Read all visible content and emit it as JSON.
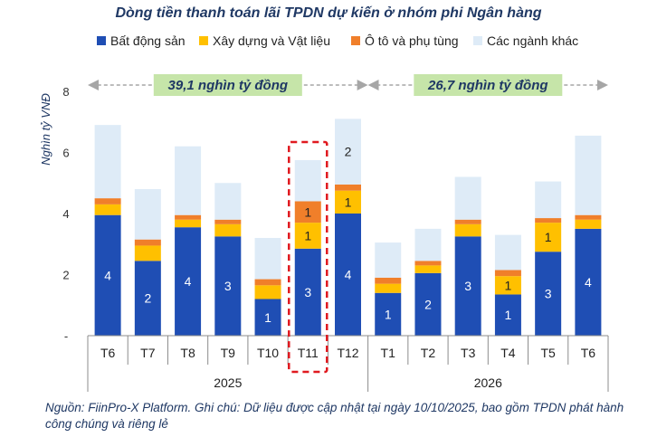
{
  "chart_data": {
    "type": "bar",
    "stacked": true,
    "title": "Dòng tiền thanh toán lãi TPDN dự kiến ở nhóm phi Ngân hàng",
    "ylabel": "Nghìn tỷ VNĐ",
    "ylim": [
      0,
      8
    ],
    "yticks": [
      "-",
      "2",
      "4",
      "6",
      "8"
    ],
    "grid": false,
    "legend_position": "top",
    "categories": [
      "T6",
      "T7",
      "T8",
      "T9",
      "T10",
      "T11",
      "T12",
      "T1",
      "T2",
      "T3",
      "T4",
      "T5",
      "T6"
    ],
    "groups": [
      {
        "label": "2025",
        "start": 0,
        "end": 6
      },
      {
        "label": "2026",
        "start": 7,
        "end": 12
      }
    ],
    "highlight_index": 5,
    "series": [
      {
        "name": "Bất động sản",
        "color": "#1f4eb4",
        "values": [
          3.95,
          2.45,
          3.55,
          3.25,
          1.2,
          2.85,
          4.0,
          1.4,
          2.05,
          3.25,
          1.35,
          2.75,
          3.5
        ],
        "labels": [
          "4",
          "2",
          "4",
          "3",
          "1",
          "3",
          "4",
          "1",
          "2",
          "3",
          "1",
          "3",
          "4"
        ]
      },
      {
        "name": "Xây dựng và Vật liệu",
        "color": "#ffc000",
        "values": [
          0.35,
          0.5,
          0.25,
          0.4,
          0.45,
          0.85,
          0.75,
          0.3,
          0.25,
          0.4,
          0.6,
          0.95,
          0.3
        ],
        "labels": [
          "",
          "",
          "",
          "",
          "",
          "1",
          "1",
          "",
          "",
          "",
          "1",
          "1",
          ""
        ]
      },
      {
        "name": "Ô tô và phụ tùng",
        "color": "#f07f2a",
        "values": [
          0.2,
          0.2,
          0.15,
          0.15,
          0.2,
          0.7,
          0.2,
          0.2,
          0.15,
          0.15,
          0.2,
          0.15,
          0.15
        ],
        "labels": [
          "",
          "",
          "",
          "",
          "",
          "1",
          "",
          "",
          "",
          "",
          "",
          "",
          ""
        ]
      },
      {
        "name": "Các ngành khác",
        "color": "#deebf7",
        "values": [
          2.4,
          1.65,
          2.25,
          1.2,
          1.35,
          1.35,
          2.15,
          1.15,
          1.05,
          1.4,
          1.15,
          1.2,
          2.6
        ],
        "labels": [
          "",
          "",
          "",
          "",
          "",
          "",
          "2",
          "",
          "",
          "",
          "",
          "",
          ""
        ]
      }
    ],
    "annotations": [
      {
        "text": "39,1 nghìn tỷ đồng",
        "start": 0,
        "end": 6
      },
      {
        "text": "26,7 nghìn tỷ đồng",
        "start": 7,
        "end": 12
      }
    ]
  },
  "note": "Nguồn: FiinPro-X Platform. Ghi chú: Dữ liệu được cập nhật tại ngày 10/10/2025, bao gồm TPDN phát hành công chúng và riêng lẻ"
}
